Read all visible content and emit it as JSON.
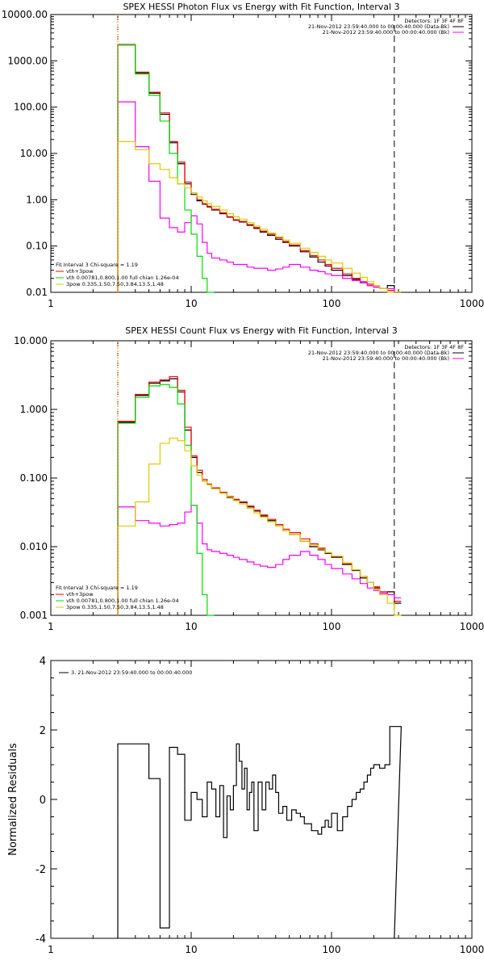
{
  "chart_data": [
    {
      "type": "line",
      "title": "SPEX HESSI Photon Flux vs Energy with Fit Function, Interval 3",
      "xlabel": "",
      "ylabel": "",
      "xscale": "log",
      "yscale": "log",
      "xlim": [
        1,
        1000
      ],
      "ylim": [
        0.01,
        10000
      ],
      "x_ticks": [
        "1",
        "10",
        "100",
        "1000"
      ],
      "y_ticks": [
        "0.01",
        "0.10",
        "1.00",
        "10.00",
        "100.00",
        "1000.00",
        "10000.00"
      ],
      "vlines": [
        3,
        280
      ],
      "legend_top_right": [
        "Detectors: 1F 3F 4F 8F",
        "21-Nov-2012 23:59:40.000 to 00:00:40.000 (Data-Bk)",
        "21-Nov-2012 23:59:40.000 to 00:00:40.000 (Bk)"
      ],
      "legend_bottom_left": [
        "Fit Interval 3   Chi-square = 1.19",
        "vth+3pow",
        "vth 0.00781,0.800,1.00  full chian 1.26e-04",
        "3pow 0.335,1.50,7.50,3.84,13.5,1.48"
      ],
      "series": [
        {
          "color": "#000000",
          "x": [
            3,
            4,
            5,
            6,
            7,
            8,
            9,
            10,
            11,
            12,
            13,
            14,
            16,
            18,
            20,
            22,
            25,
            28,
            31,
            35,
            40,
            45,
            50,
            60,
            70,
            80,
            90,
            100,
            120,
            140,
            160,
            180,
            200,
            220,
            250,
            280
          ],
          "values": [
            2200,
            550,
            200,
            70,
            17,
            6,
            2.2,
            1.3,
            0.95,
            0.8,
            0.7,
            0.6,
            0.5,
            0.42,
            0.36,
            0.33,
            0.28,
            0.24,
            0.2,
            0.17,
            0.14,
            0.12,
            0.1,
            0.075,
            0.058,
            0.045,
            0.037,
            0.03,
            0.023,
            0.019,
            0.016,
            0.014,
            0.013,
            0.012,
            0.014,
            0.01
          ]
        },
        {
          "color": "#ff0000",
          "x": [
            3,
            4,
            5,
            6,
            7,
            8,
            9,
            10,
            11,
            12,
            13,
            14,
            16,
            18,
            20,
            22,
            25,
            28,
            31,
            35,
            40,
            45,
            50,
            60,
            70,
            80,
            90,
            100,
            120,
            140,
            160,
            180,
            200,
            220,
            250,
            280
          ],
          "values": [
            2250,
            570,
            210,
            75,
            18,
            6.5,
            2.4,
            1.4,
            1.0,
            0.82,
            0.72,
            0.62,
            0.52,
            0.43,
            0.37,
            0.34,
            0.29,
            0.25,
            0.21,
            0.18,
            0.15,
            0.125,
            0.105,
            0.08,
            0.062,
            0.05,
            0.04,
            0.033,
            0.025,
            0.02,
            0.017,
            0.015,
            0.013,
            0.012,
            0.011,
            0.01
          ]
        },
        {
          "color": "#ff00ff",
          "x": [
            3,
            4,
            5,
            6,
            7,
            8,
            9,
            10,
            11,
            12,
            13,
            14,
            16,
            18,
            20,
            22,
            25,
            28,
            31,
            35,
            40,
            45,
            50,
            60,
            70,
            80,
            90,
            100,
            120,
            140,
            160,
            180,
            200,
            220,
            250,
            280
          ],
          "values": [
            130,
            14,
            2.5,
            0.4,
            0.25,
            0.2,
            0.32,
            0.45,
            0.3,
            0.12,
            0.07,
            0.055,
            0.05,
            0.045,
            0.04,
            0.04,
            0.035,
            0.033,
            0.033,
            0.03,
            0.032,
            0.035,
            0.04,
            0.035,
            0.03,
            0.028,
            0.025,
            0.023,
            0.02,
            0.018,
            0.016,
            0.014,
            0.013,
            0.012,
            0.012,
            0.01
          ]
        },
        {
          "color": "#00dd00",
          "x": [
            3,
            4,
            5,
            6,
            7,
            8,
            9,
            10,
            11,
            12,
            13
          ],
          "values": [
            2200,
            520,
            180,
            50,
            10,
            2.2,
            0.6,
            0.18,
            0.06,
            0.02,
            0.01
          ]
        },
        {
          "color": "#ddcc00",
          "x": [
            3,
            4,
            5,
            6,
            7,
            8,
            9,
            10,
            11,
            12,
            13,
            14,
            16,
            18,
            20,
            22,
            25,
            28,
            31,
            35,
            40,
            45,
            50,
            60,
            70,
            80,
            90,
            100,
            120,
            140,
            160,
            180,
            200,
            220,
            250,
            280
          ],
          "values": [
            18,
            12,
            6,
            4.5,
            3,
            2.2,
            1.8,
            1.4,
            1.15,
            0.95,
            0.82,
            0.72,
            0.6,
            0.5,
            0.43,
            0.38,
            0.32,
            0.27,
            0.23,
            0.19,
            0.16,
            0.135,
            0.115,
            0.09,
            0.073,
            0.06,
            0.05,
            0.043,
            0.033,
            0.026,
            0.021,
            0.017,
            0.014,
            0.012,
            0.01,
            0.009
          ]
        },
        {
          "color": "#ff8800",
          "x": [
            3,
            3.05
          ],
          "values": [
            0.01,
            10000
          ]
        }
      ]
    },
    {
      "type": "line",
      "title": "SPEX HESSI Count Flux vs Energy with Fit Function, Interval 3",
      "xlabel": "",
      "ylabel": "",
      "xscale": "log",
      "yscale": "log",
      "xlim": [
        1,
        1000
      ],
      "ylim": [
        0.001,
        10
      ],
      "x_ticks": [
        "1",
        "10",
        "100",
        "1000"
      ],
      "y_ticks": [
        "0.001",
        "0.010",
        "0.100",
        "1.000",
        "10.000"
      ],
      "vlines": [
        3,
        280
      ],
      "legend_top_right": [
        "Detectors: 1F 3F 4F 8F",
        "21-Nov-2012 23:59:40.000 to 00:00:40.000 (Data-Bk)",
        "21-Nov-2012 23:59:40.000 to 00:00:40.000 (Bk)"
      ],
      "legend_bottom_left": [
        "Fit Interval 3   Chi-square = 1.19",
        "vth+3pow",
        "vth 0.00781,0.800,1.00  full chian 1.26e-04",
        "3pow 0.335,1.50,7.50,3.84,13.5,1.48"
      ],
      "series": [
        {
          "color": "#000000",
          "x": [
            3,
            4,
            5,
            6,
            7,
            8,
            9,
            10,
            11,
            12,
            13,
            14,
            16,
            18,
            20,
            22,
            25,
            28,
            31,
            35,
            40,
            45,
            50,
            60,
            70,
            80,
            90,
            100,
            120,
            140,
            160,
            180,
            200,
            220,
            250,
            280
          ],
          "values": [
            0.65,
            1.6,
            2.4,
            2.6,
            2.8,
            1.8,
            0.5,
            0.2,
            0.12,
            0.09,
            0.08,
            0.07,
            0.06,
            0.052,
            0.048,
            0.044,
            0.038,
            0.033,
            0.028,
            0.024,
            0.02,
            0.017,
            0.015,
            0.012,
            0.01,
            0.009,
            0.008,
            0.007,
            0.0055,
            0.0045,
            0.0035,
            0.003,
            0.0025,
            0.002,
            0.0022,
            0.0015
          ]
        },
        {
          "color": "#ff0000",
          "x": [
            3,
            4,
            5,
            6,
            7,
            8,
            9,
            10,
            11,
            12,
            13,
            14,
            16,
            18,
            20,
            22,
            25,
            28,
            31,
            35,
            40,
            45,
            50,
            60,
            70,
            80,
            90,
            100,
            120,
            140,
            160,
            180,
            200,
            220,
            250,
            280
          ],
          "values": [
            0.67,
            1.65,
            2.5,
            2.7,
            3.0,
            1.9,
            0.55,
            0.21,
            0.13,
            0.095,
            0.082,
            0.072,
            0.062,
            0.054,
            0.049,
            0.045,
            0.039,
            0.034,
            0.029,
            0.025,
            0.021,
            0.018,
            0.016,
            0.013,
            0.011,
            0.0095,
            0.0082,
            0.0072,
            0.0057,
            0.0046,
            0.0037,
            0.003,
            0.0026,
            0.0022,
            0.002,
            0.0016
          ]
        },
        {
          "color": "#ff00ff",
          "x": [
            3,
            4,
            5,
            6,
            7,
            8,
            9,
            10,
            11,
            12,
            13,
            14,
            16,
            18,
            20,
            22,
            25,
            28,
            31,
            35,
            40,
            45,
            50,
            60,
            70,
            80,
            90,
            100,
            120,
            140,
            160,
            180,
            200,
            220,
            250,
            280
          ],
          "values": [
            0.038,
            0.024,
            0.022,
            0.02,
            0.021,
            0.022,
            0.032,
            0.04,
            0.022,
            0.011,
            0.009,
            0.0085,
            0.008,
            0.0075,
            0.007,
            0.0065,
            0.006,
            0.0055,
            0.0052,
            0.005,
            0.0055,
            0.0065,
            0.0075,
            0.0085,
            0.0075,
            0.0065,
            0.0055,
            0.0048,
            0.004,
            0.0034,
            0.0029,
            0.0025,
            0.0023,
            0.0021,
            0.002,
            0.0018
          ]
        },
        {
          "color": "#00dd00",
          "x": [
            3,
            4,
            5,
            6,
            7,
            8,
            9,
            10,
            11,
            12,
            13
          ],
          "values": [
            0.63,
            1.5,
            2.2,
            2.3,
            2.1,
            1.2,
            0.3,
            0.04,
            0.008,
            0.002,
            0.001
          ]
        },
        {
          "color": "#ddcc00",
          "x": [
            3,
            4,
            5,
            6,
            7,
            8,
            9,
            10,
            11,
            12,
            13,
            14,
            16,
            18,
            20,
            22,
            25,
            28,
            31,
            35,
            40,
            45,
            50,
            60,
            70,
            80,
            90,
            100,
            120,
            140,
            160,
            180,
            200,
            220,
            250,
            280
          ],
          "values": [
            0.02,
            0.045,
            0.16,
            0.32,
            0.38,
            0.35,
            0.25,
            0.15,
            0.11,
            0.09,
            0.08,
            0.07,
            0.06,
            0.053,
            0.047,
            0.042,
            0.036,
            0.031,
            0.027,
            0.023,
            0.02,
            0.017,
            0.015,
            0.012,
            0.0105,
            0.0092,
            0.0082,
            0.0073,
            0.0058,
            0.0046,
            0.0037,
            0.003,
            0.0024,
            0.002,
            0.0015,
            0.001
          ]
        },
        {
          "color": "#ff8800",
          "x": [
            3,
            3.05
          ],
          "values": [
            0.001,
            10
          ]
        }
      ]
    },
    {
      "type": "line",
      "title": "",
      "xlabel": "",
      "ylabel": "Normalized Residuals",
      "xscale": "log",
      "yscale": "linear",
      "xlim": [
        1,
        1000
      ],
      "ylim": [
        -4,
        4
      ],
      "x_ticks": [
        "1",
        "10",
        "100",
        "1000"
      ],
      "y_ticks": [
        "-4",
        "-2",
        "0",
        "2",
        "4"
      ],
      "legend": [
        "3. 21-Nov-2012 23:59:40.000 to 00:00:40.000"
      ],
      "series": [
        {
          "color": "#000000",
          "step": true,
          "x": [
            3,
            4,
            5,
            6,
            7,
            8,
            9,
            10,
            11,
            12,
            13,
            14,
            15,
            16,
            17,
            18,
            19,
            20,
            21,
            22,
            23,
            24,
            25,
            26,
            27,
            28,
            30,
            32,
            34,
            36,
            38,
            40,
            42,
            45,
            48,
            52,
            56,
            60,
            64,
            68,
            72,
            76,
            80,
            85,
            90,
            95,
            100,
            110,
            120,
            130,
            140,
            150,
            160,
            170,
            180,
            190,
            200,
            220,
            240,
            260,
            280
          ],
          "values": [
            1.6,
            1.6,
            0.6,
            -3.7,
            1.5,
            1.3,
            -0.6,
            0.2,
            0.0,
            -0.5,
            0.5,
            0.3,
            -0.5,
            0.4,
            -1.1,
            0.1,
            -0.3,
            0.4,
            1.6,
            1.1,
            0.3,
            0.9,
            -0.3,
            0.2,
            0.5,
            -0.9,
            0.5,
            -0.3,
            0.5,
            0.3,
            0.7,
            0.2,
            -0.4,
            -0.2,
            -0.6,
            -0.3,
            -0.4,
            -0.5,
            -0.7,
            -0.7,
            -0.9,
            -0.9,
            -1.0,
            -0.8,
            -0.6,
            -0.8,
            -0.4,
            -0.9,
            -0.5,
            -0.2,
            0.0,
            0.2,
            0.3,
            0.5,
            0.7,
            0.9,
            1.0,
            0.9,
            1.0,
            2.1,
            2.1
          ]
        }
      ]
    }
  ]
}
